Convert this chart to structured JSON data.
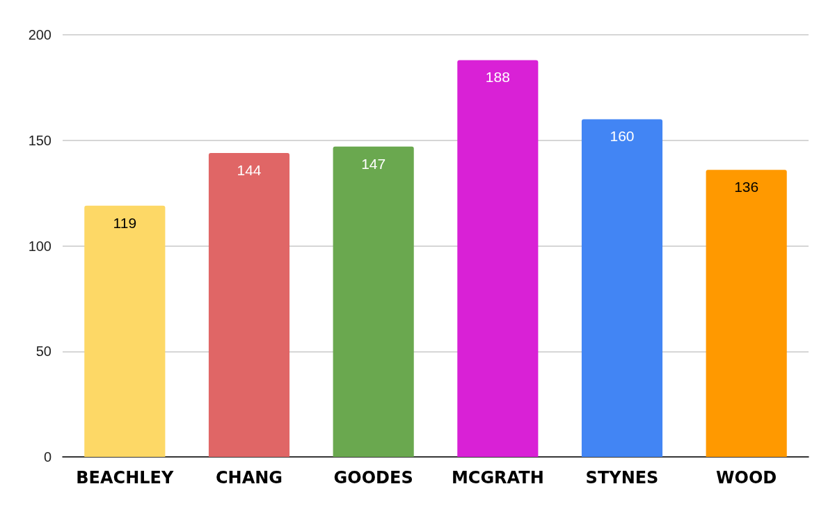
{
  "chart_data": {
    "type": "bar",
    "categories": [
      "BEACHLEY",
      "CHANG",
      "GOODES",
      "MCGRATH",
      "STYNES",
      "WOOD"
    ],
    "values": [
      119,
      144,
      147,
      188,
      160,
      136
    ],
    "colors": [
      "#fdd866",
      "#e06666",
      "#6aa84f",
      "#d921d6",
      "#4285f4",
      "#ff9900"
    ],
    "ylim": [
      0,
      200
    ],
    "yticks": [
      0,
      50,
      100,
      150,
      200
    ],
    "grid": "y",
    "data_labels": true
  }
}
